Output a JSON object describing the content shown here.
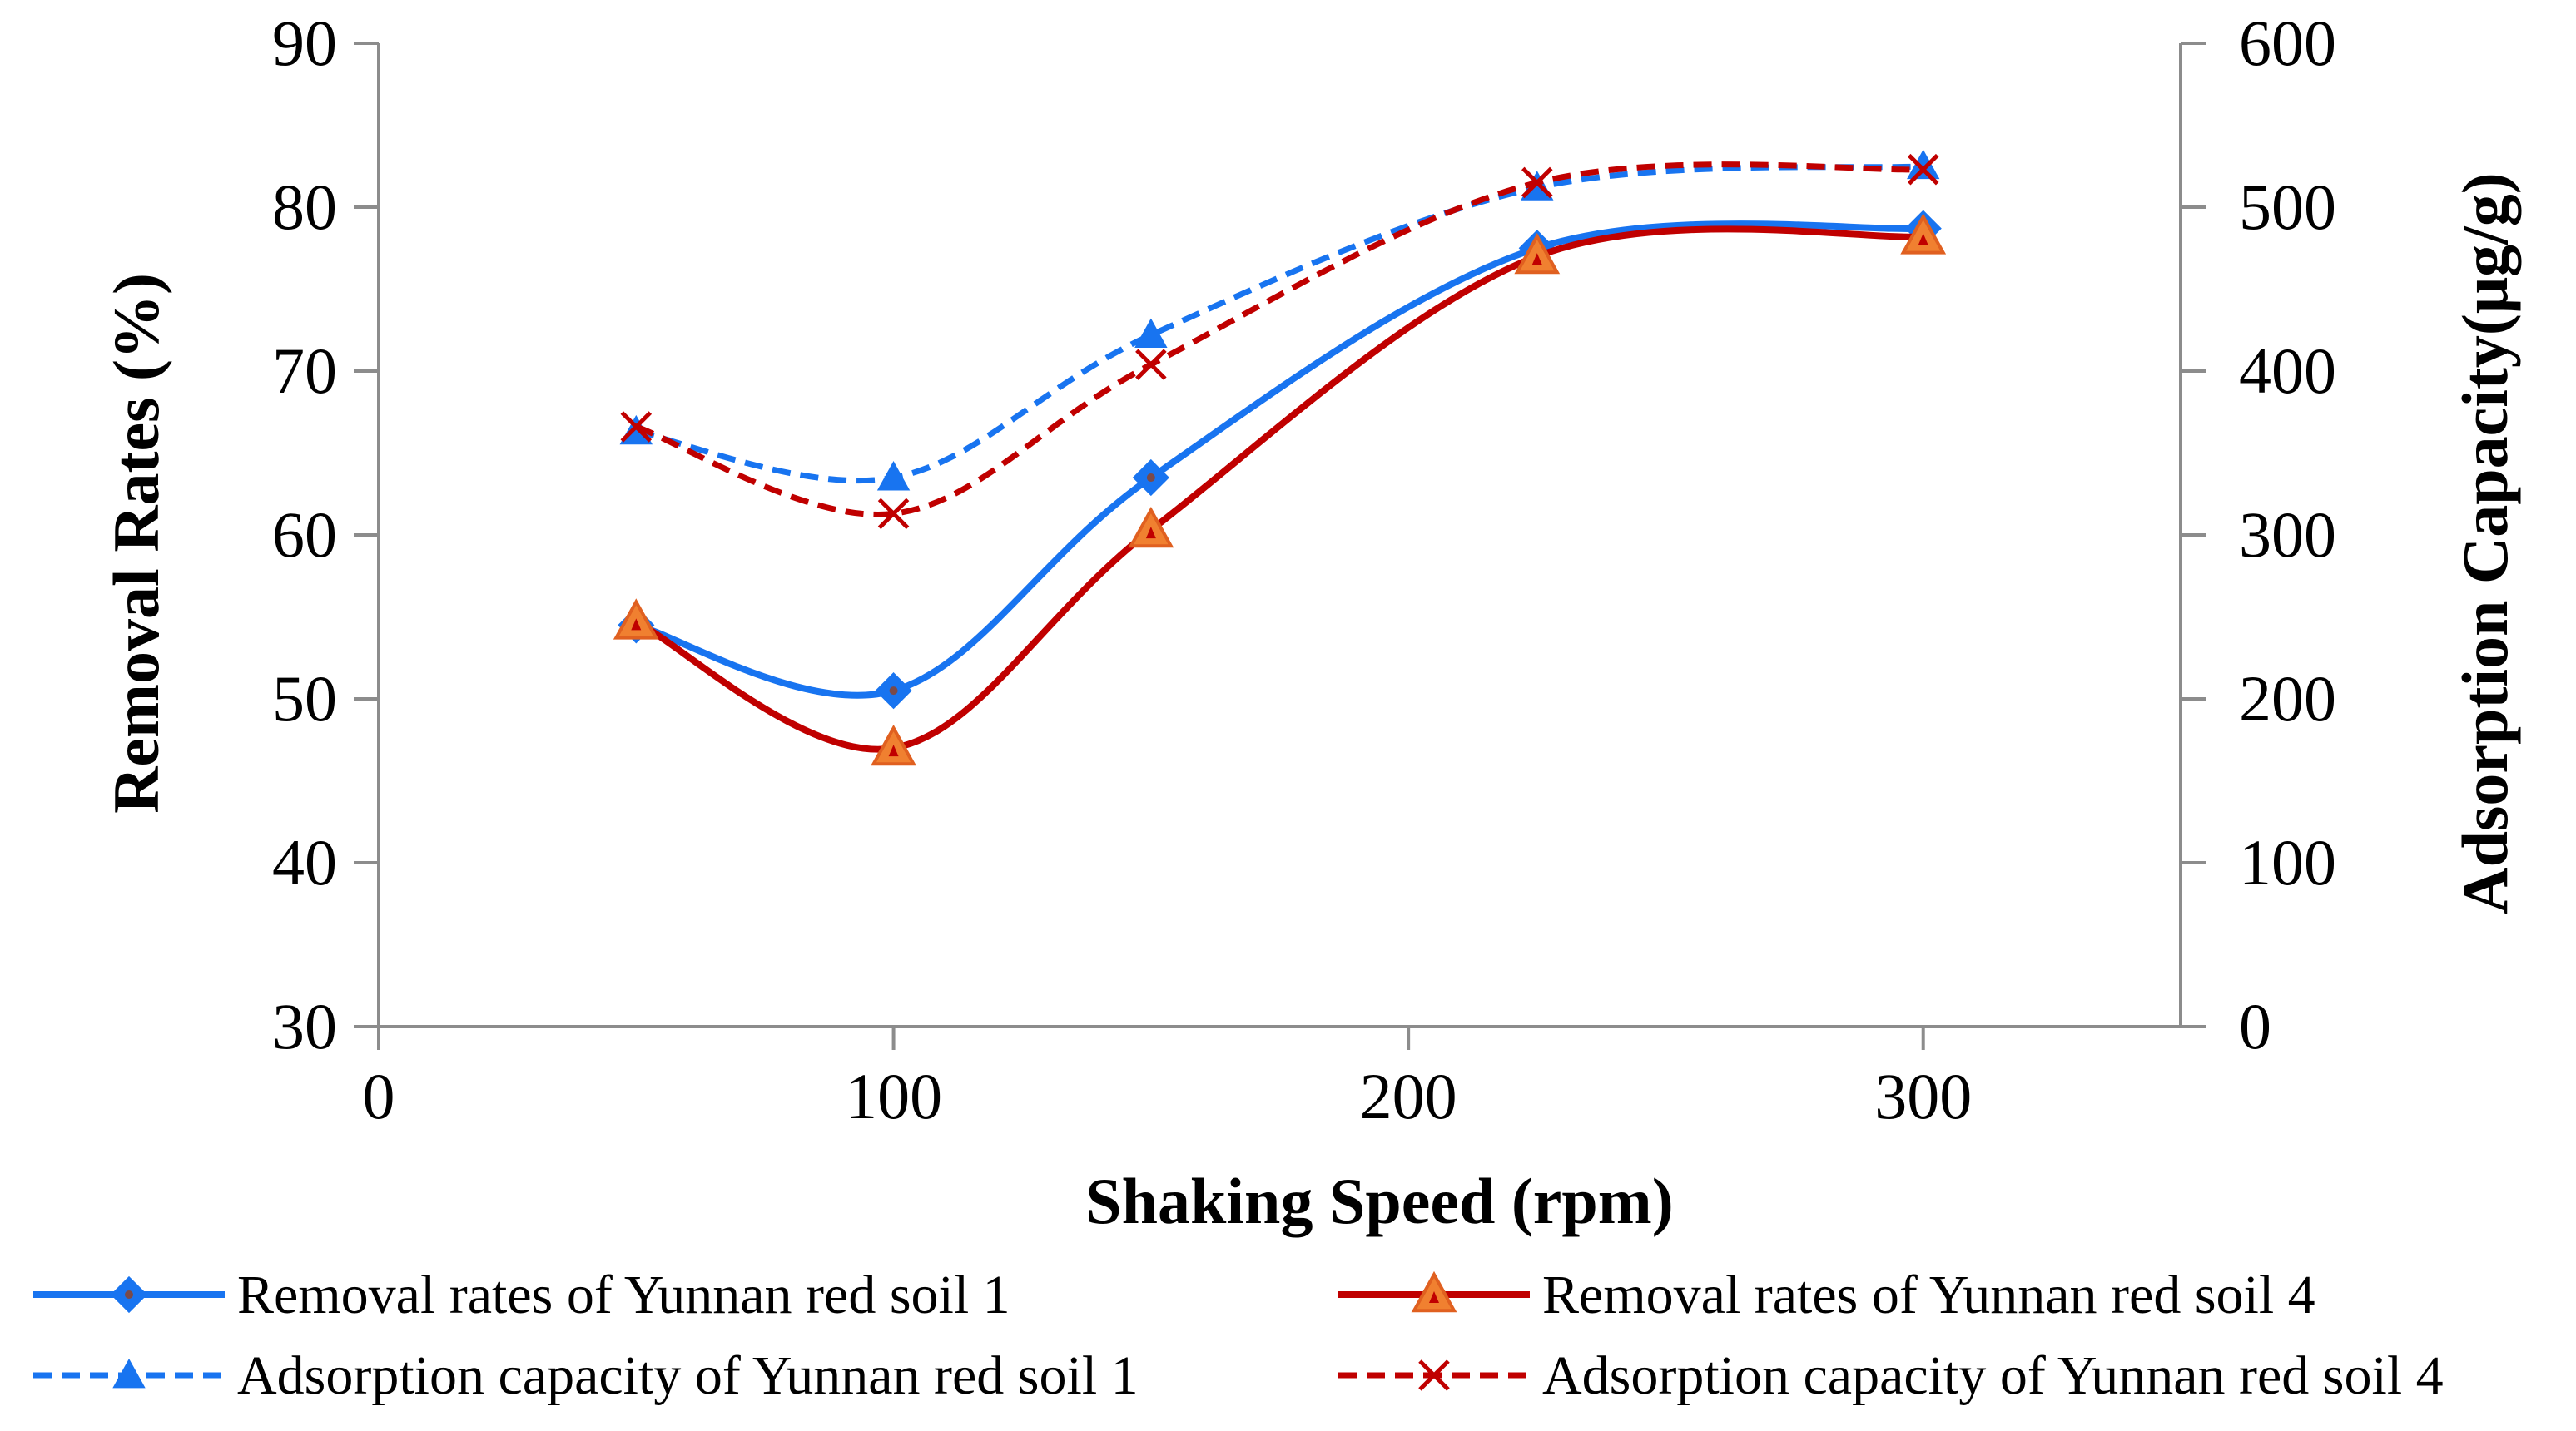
{
  "chart_data": {
    "type": "line",
    "title": "",
    "xlabel": "Shaking Speed (rpm)",
    "ylabel_left": "Removal Rates (%)",
    "ylabel_right": "Adsorption Capacity(μg/g)",
    "xlim": [
      0,
      350
    ],
    "ylim_left": [
      30,
      90
    ],
    "ylim_right": [
      0,
      600
    ],
    "x_ticks": [
      "0",
      "100",
      "200",
      "300"
    ],
    "x_tick_values": [
      0,
      100,
      200,
      300
    ],
    "y_left_ticks": [
      "30",
      "40",
      "50",
      "60",
      "70",
      "80",
      "90"
    ],
    "y_left_tick_values": [
      30,
      40,
      50,
      60,
      70,
      80,
      90
    ],
    "y_right_ticks": [
      "0",
      "100",
      "200",
      "300",
      "400",
      "500",
      "600"
    ],
    "y_right_tick_values": [
      0,
      100,
      200,
      300,
      400,
      500,
      600
    ],
    "grid": false,
    "legend_position": "bottom",
    "series": [
      {
        "name": "Removal rates of Yunnan red soil 1",
        "axis": "left",
        "x": [
          50,
          100,
          150,
          225,
          300
        ],
        "values": [
          54.5,
          50.5,
          63.5,
          77.5,
          78.7
        ],
        "color": "#1874F0",
        "dash": "solid",
        "marker": "diamond"
      },
      {
        "name": "Removal rates of Yunnan red soil 4",
        "axis": "left",
        "x": [
          50,
          100,
          150,
          225,
          300
        ],
        "values": [
          54.7,
          47.0,
          60.3,
          77.0,
          78.2
        ],
        "color": "#C00000",
        "dash": "solid",
        "marker": "triangle-orange"
      },
      {
        "name": "Adsorption capacity of Yunnan red soil 1",
        "axis": "right",
        "x": [
          50,
          100,
          150,
          225,
          300
        ],
        "values": [
          363,
          335,
          422,
          512,
          525
        ],
        "color": "#1874F0",
        "dash": "dashed",
        "marker": "triangle"
      },
      {
        "name": "Adsorption capacity of Yunnan red soil 4",
        "axis": "right",
        "x": [
          50,
          100,
          150,
          225,
          300
        ],
        "values": [
          366,
          313,
          404,
          515,
          523
        ],
        "color": "#C00000",
        "dash": "dashed",
        "marker": "x"
      }
    ]
  }
}
